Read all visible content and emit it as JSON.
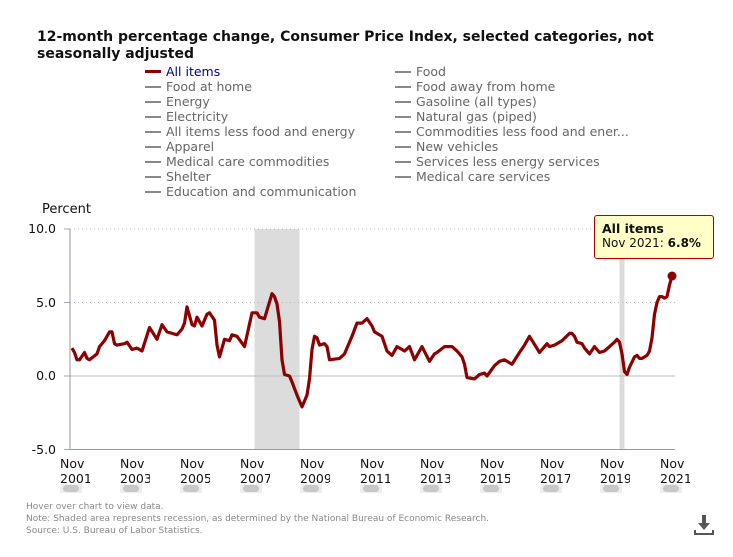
{
  "chart_data": {
    "type": "line",
    "title": "12-month percentage change, Consumer Price Index, selected categories, not seasonally adjusted",
    "ylabel": "Percent",
    "ylim": [
      -5.0,
      10.0
    ],
    "yticks": [
      "10.0",
      "5.0",
      "0.0",
      "-5.0"
    ],
    "xlim": [
      "2001-11",
      "2021-11"
    ],
    "xticks": [
      "Nov 2001",
      "Nov 2003",
      "Nov 2005",
      "Nov 2007",
      "Nov 2009",
      "Nov 2011",
      "Nov 2013",
      "Nov 2015",
      "Nov 2017",
      "Nov 2019",
      "Nov 2021"
    ],
    "grid": "horizontal dotted",
    "legend": {
      "placement": "top",
      "left": [
        "All items",
        "Food at home",
        "Energy",
        "Electricity",
        "All items less food and energy",
        "Apparel",
        "Medical care commodities",
        "Shelter",
        "Education and communication"
      ],
      "right": [
        "Food",
        "Food away from home",
        "Gasoline (all types)",
        "Natural gas (piped)",
        "Commodities less food and ener...",
        "New vehicles",
        "Services less energy services",
        "Medical care services"
      ],
      "active": "All items"
    },
    "recessions": [
      [
        "2007-12",
        "2009-06"
      ],
      [
        "2020-02",
        "2020-04"
      ]
    ],
    "series": [
      {
        "name": "All items",
        "color": "#8b0000",
        "points": [
          [
            "2001-11",
            1.9
          ],
          [
            "2001-12",
            1.6
          ],
          [
            "2002-01",
            1.1
          ],
          [
            "2002-02",
            1.1
          ],
          [
            "2002-04",
            1.6
          ],
          [
            "2002-05",
            1.2
          ],
          [
            "2002-06",
            1.1
          ],
          [
            "2002-09",
            1.5
          ],
          [
            "2002-10",
            2.0
          ],
          [
            "2002-12",
            2.4
          ],
          [
            "2003-02",
            3.0
          ],
          [
            "2003-03",
            3.0
          ],
          [
            "2003-04",
            2.2
          ],
          [
            "2003-05",
            2.1
          ],
          [
            "2003-08",
            2.2
          ],
          [
            "2003-09",
            2.3
          ],
          [
            "2003-11",
            1.8
          ],
          [
            "2004-01",
            1.9
          ],
          [
            "2004-03",
            1.7
          ],
          [
            "2004-06",
            3.3
          ],
          [
            "2004-09",
            2.5
          ],
          [
            "2004-11",
            3.5
          ],
          [
            "2005-01",
            3.0
          ],
          [
            "2005-05",
            2.8
          ],
          [
            "2005-07",
            3.2
          ],
          [
            "2005-08",
            3.6
          ],
          [
            "2005-09",
            4.7
          ],
          [
            "2005-11",
            3.5
          ],
          [
            "2005-12",
            3.4
          ],
          [
            "2006-01",
            4.0
          ],
          [
            "2006-03",
            3.4
          ],
          [
            "2006-05",
            4.2
          ],
          [
            "2006-06",
            4.3
          ],
          [
            "2006-08",
            3.8
          ],
          [
            "2006-09",
            2.1
          ],
          [
            "2006-10",
            1.3
          ],
          [
            "2006-12",
            2.5
          ],
          [
            "2007-02",
            2.4
          ],
          [
            "2007-03",
            2.8
          ],
          [
            "2007-05",
            2.7
          ],
          [
            "2007-08",
            2.0
          ],
          [
            "2007-11",
            4.3
          ],
          [
            "2008-01",
            4.3
          ],
          [
            "2008-02",
            4.0
          ],
          [
            "2008-04",
            3.9
          ],
          [
            "2008-07",
            5.6
          ],
          [
            "2008-08",
            5.4
          ],
          [
            "2008-09",
            4.9
          ],
          [
            "2008-10",
            3.7
          ],
          [
            "2008-11",
            1.1
          ],
          [
            "2008-12",
            0.1
          ],
          [
            "2009-02",
            0.0
          ],
          [
            "2009-03",
            -0.4
          ],
          [
            "2009-05",
            -1.3
          ],
          [
            "2009-07",
            -2.1
          ],
          [
            "2009-09",
            -1.3
          ],
          [
            "2009-10",
            -0.2
          ],
          [
            "2009-11",
            1.8
          ],
          [
            "2009-12",
            2.7
          ],
          [
            "2010-01",
            2.6
          ],
          [
            "2010-02",
            2.1
          ],
          [
            "2010-04",
            2.2
          ],
          [
            "2010-05",
            2.0
          ],
          [
            "2010-06",
            1.1
          ],
          [
            "2010-10",
            1.2
          ],
          [
            "2010-12",
            1.5
          ],
          [
            "2011-03",
            2.7
          ],
          [
            "2011-05",
            3.6
          ],
          [
            "2011-07",
            3.6
          ],
          [
            "2011-09",
            3.9
          ],
          [
            "2011-11",
            3.4
          ],
          [
            "2011-12",
            3.0
          ],
          [
            "2012-03",
            2.7
          ],
          [
            "2012-05",
            1.7
          ],
          [
            "2012-07",
            1.4
          ],
          [
            "2012-09",
            2.0
          ],
          [
            "2012-11",
            1.8
          ],
          [
            "2012-12",
            1.7
          ],
          [
            "2013-02",
            2.0
          ],
          [
            "2013-04",
            1.1
          ],
          [
            "2013-07",
            2.0
          ],
          [
            "2013-10",
            1.0
          ],
          [
            "2013-12",
            1.5
          ],
          [
            "2014-01",
            1.6
          ],
          [
            "2014-04",
            2.0
          ],
          [
            "2014-07",
            2.0
          ],
          [
            "2014-09",
            1.7
          ],
          [
            "2014-11",
            1.3
          ],
          [
            "2014-12",
            0.8
          ],
          [
            "2015-01",
            -0.1
          ],
          [
            "2015-04",
            -0.2
          ],
          [
            "2015-06",
            0.1
          ],
          [
            "2015-08",
            0.2
          ],
          [
            "2015-09",
            0.0
          ],
          [
            "2015-12",
            0.7
          ],
          [
            "2016-02",
            1.0
          ],
          [
            "2016-04",
            1.1
          ],
          [
            "2016-07",
            0.8
          ],
          [
            "2016-10",
            1.6
          ],
          [
            "2016-12",
            2.1
          ],
          [
            "2017-02",
            2.7
          ],
          [
            "2017-06",
            1.6
          ],
          [
            "2017-09",
            2.2
          ],
          [
            "2017-10",
            2.0
          ],
          [
            "2017-12",
            2.1
          ],
          [
            "2018-03",
            2.4
          ],
          [
            "2018-06",
            2.9
          ],
          [
            "2018-07",
            2.9
          ],
          [
            "2018-08",
            2.7
          ],
          [
            "2018-09",
            2.3
          ],
          [
            "2018-11",
            2.2
          ],
          [
            "2018-12",
            1.9
          ],
          [
            "2019-02",
            1.5
          ],
          [
            "2019-04",
            2.0
          ],
          [
            "2019-06",
            1.6
          ],
          [
            "2019-08",
            1.7
          ],
          [
            "2019-12",
            2.3
          ],
          [
            "2020-01",
            2.5
          ],
          [
            "2020-02",
            2.3
          ],
          [
            "2020-03",
            1.5
          ],
          [
            "2020-04",
            0.3
          ],
          [
            "2020-05",
            0.1
          ],
          [
            "2020-06",
            0.6
          ],
          [
            "2020-08",
            1.3
          ],
          [
            "2020-09",
            1.4
          ],
          [
            "2020-10",
            1.2
          ],
          [
            "2020-11",
            1.2
          ],
          [
            "2021-01",
            1.4
          ],
          [
            "2021-02",
            1.7
          ],
          [
            "2021-03",
            2.6
          ],
          [
            "2021-04",
            4.2
          ],
          [
            "2021-05",
            5.0
          ],
          [
            "2021-06",
            5.4
          ],
          [
            "2021-07",
            5.4
          ],
          [
            "2021-08",
            5.3
          ],
          [
            "2021-09",
            5.4
          ],
          [
            "2021-10",
            6.2
          ],
          [
            "2021-11",
            6.8
          ]
        ]
      }
    ],
    "tooltip": {
      "series": "All items",
      "label": "Nov 2021:",
      "value": "6.8%"
    }
  },
  "notes": {
    "hover": "Hover over chart to view data.",
    "note": "Note: Shaded area represents recession, as determined by the National Bureau of Economic Research.",
    "source": "Source: U.S. Bureau of Labor Statistics."
  },
  "icons": {
    "download": "download-icon"
  }
}
